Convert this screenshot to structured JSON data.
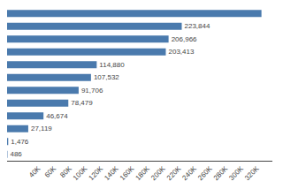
{
  "chart_data": {
    "type": "bar",
    "orientation": "horizontal",
    "categories": [
      null,
      null,
      null,
      null,
      null,
      null,
      null,
      null,
      null,
      null,
      null,
      null
    ],
    "values": [
      326000,
      223844,
      206966,
      203413,
      114880,
      107532,
      91706,
      78479,
      46674,
      27119,
      1476,
      486
    ],
    "value_labels": [
      null,
      "223,844",
      "206,966",
      "203,413",
      "114,880",
      "107,532",
      "91,706",
      "78,479",
      "46,674",
      "27,119",
      "1,476",
      "486"
    ],
    "data_labels": true,
    "color": "#4a7aad",
    "xlim": [
      0,
      340000
    ],
    "xticks": [
      {
        "value": 40000,
        "label": "40K"
      },
      {
        "value": 60000,
        "label": "60K"
      },
      {
        "value": 80000,
        "label": "80K"
      },
      {
        "value": 100000,
        "label": "100K"
      },
      {
        "value": 120000,
        "label": "120K"
      },
      {
        "value": 140000,
        "label": "140K"
      },
      {
        "value": 160000,
        "label": "160K"
      },
      {
        "value": 180000,
        "label": "180K"
      },
      {
        "value": 200000,
        "label": "200K"
      },
      {
        "value": 220000,
        "label": "220K"
      },
      {
        "value": 240000,
        "label": "240K"
      },
      {
        "value": 260000,
        "label": "260K"
      },
      {
        "value": 280000,
        "label": "280K"
      },
      {
        "value": 300000,
        "label": "300K"
      },
      {
        "value": 320000,
        "label": "320K"
      }
    ],
    "grid": false,
    "tick_labels": "x"
  }
}
